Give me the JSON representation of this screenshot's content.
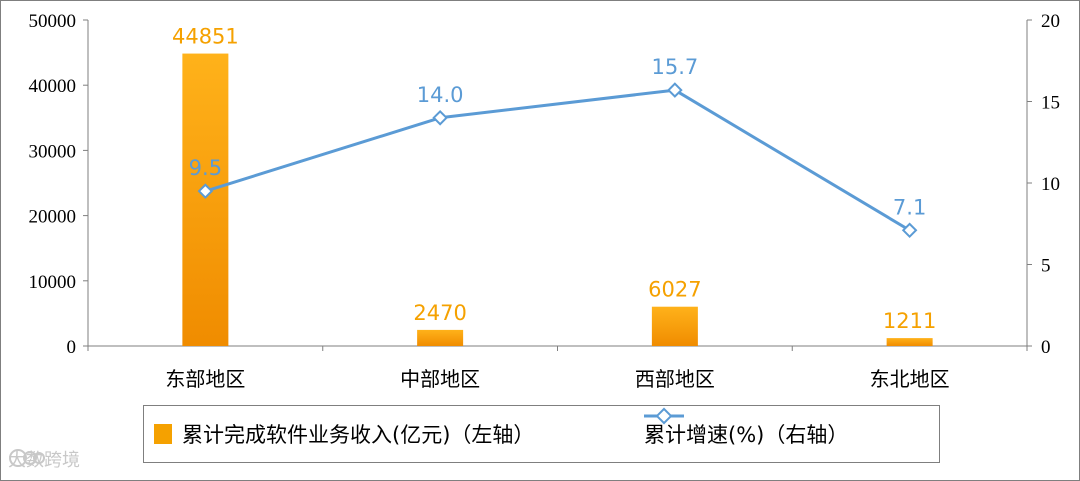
{
  "chart_data": {
    "type": "bar+line",
    "categories": [
      "东部地区",
      "中部地区",
      "西部地区",
      "东北地区"
    ],
    "series": [
      {
        "name": "累计完成软件业务收入(亿元)（左轴）",
        "type": "bar",
        "axis": "left",
        "values": [
          44851,
          2470,
          6027,
          1211
        ],
        "labels": [
          "44851",
          "2470",
          "6027",
          "1211"
        ],
        "color": "#f5a100"
      },
      {
        "name": "累计增速(%)（右轴）",
        "type": "line",
        "axis": "right",
        "values": [
          9.5,
          14.0,
          15.7,
          7.1
        ],
        "labels": [
          "9.5",
          "14.0",
          "15.7",
          "7.1"
        ],
        "color": "#5b9bd5"
      }
    ],
    "y_left": {
      "range": [
        0,
        50000
      ],
      "ticks": [
        "0",
        "10000",
        "20000",
        "30000",
        "40000",
        "50000"
      ]
    },
    "y_right": {
      "range": [
        0,
        20
      ],
      "ticks": [
        "0",
        "5",
        "10",
        "15",
        "20"
      ]
    },
    "legend_placement": "bottom",
    "grid": false
  },
  "legend": {
    "bar_label": "累计完成软件业务收入(亿元)（左轴）",
    "line_label": "累计增速(%)（右轴）"
  },
  "watermark": {
    "text": "大数跨境"
  }
}
